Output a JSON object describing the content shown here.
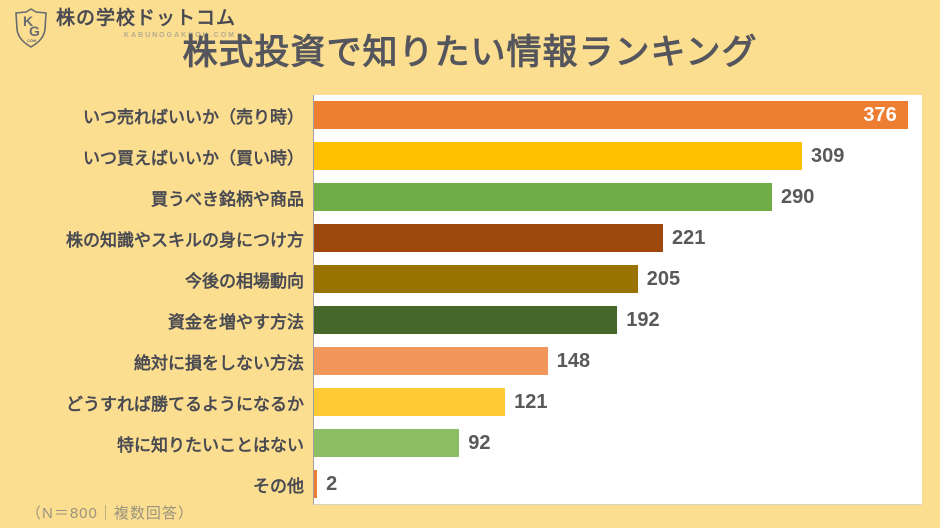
{
  "header": {
    "brand": {
      "logo_letters": "KG",
      "logo_sub": "COM",
      "name": "株の学校ドットコム",
      "domain": "KABUNOGAKKOU.COM"
    },
    "title": "株式投資で知りたい情報ランキング"
  },
  "chart_data": {
    "type": "bar",
    "orientation": "horizontal",
    "title": "株式投資で知りたい情報ランキング",
    "categories": [
      "いつ売ればいいか（売り時）",
      "いつ買えばいいか（買い時）",
      "買うべき銘柄や商品",
      "株の知識やスキルの身につけ方",
      "今後の相場動向",
      "資金を増やす方法",
      "絶対に損をしない方法",
      "どうすれば勝てるようになるか",
      "特に知りたいことはない",
      "その他"
    ],
    "values": [
      376,
      309,
      290,
      221,
      205,
      192,
      148,
      121,
      92,
      2
    ],
    "bar_colors": [
      "#ED7D31",
      "#FFC000",
      "#70AD47",
      "#9E480E",
      "#997300",
      "#45672A",
      "#F2975C",
      "#FFCA33",
      "#8CBF63",
      "#ED7D31"
    ],
    "xlim": [
      0,
      385
    ],
    "inside_label_index": 0,
    "grid": false,
    "legend": false,
    "note": "（N＝800｜複数回答）"
  },
  "footnote": {
    "text": "（N＝800｜複数回答）"
  },
  "colors": {
    "background": "#FBDE90",
    "plot_background": "#FFFFFF",
    "title_text": "#55565D",
    "category_text": "#4A4B52",
    "value_text": "#595959",
    "value_text_inside": "#FFFFFF",
    "axis_line": "#9E9E9E"
  }
}
